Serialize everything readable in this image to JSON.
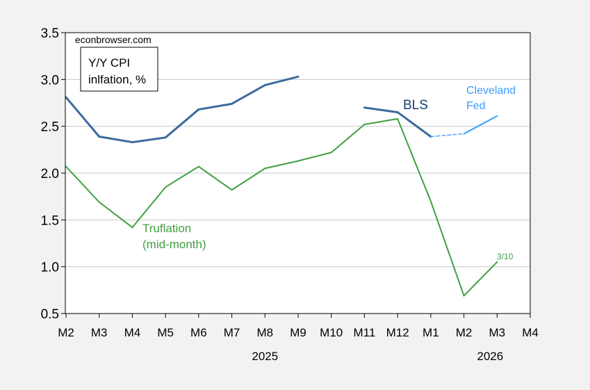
{
  "chart_data": {
    "type": "line",
    "title": "Y/Y CPI inlfation, %",
    "title_lines": [
      "Y/Y CPI",
      "inlfation, %"
    ],
    "watermark": "econbrowser.com",
    "categories": [
      "M2",
      "M3",
      "M4",
      "M5",
      "M6",
      "M7",
      "M8",
      "M9",
      "M10",
      "M11",
      "M12",
      "M1",
      "M2",
      "M3",
      "M4"
    ],
    "year_labels": [
      {
        "label": "2025",
        "at": 6
      },
      {
        "label": "2026",
        "at": 13
      }
    ],
    "ylim": [
      0.5,
      3.5
    ],
    "yticks": [
      "0.5",
      "1.0",
      "1.5",
      "2.0",
      "2.5",
      "3.0",
      "3.5"
    ],
    "grid": true,
    "series": [
      {
        "name": "BLS",
        "label_lines": [
          "BLS"
        ],
        "color": "#3a6a9e",
        "values": [
          2.81,
          2.39,
          2.33,
          2.38,
          2.68,
          2.74,
          2.94,
          3.03,
          null,
          2.7,
          2.65,
          2.39,
          null,
          null,
          null
        ]
      },
      {
        "name": "Cleveland Fed",
        "label_lines": [
          "Cleveland",
          "Fed"
        ],
        "color": "#3d9bff",
        "values": [
          null,
          null,
          null,
          null,
          null,
          null,
          null,
          null,
          null,
          null,
          null,
          2.39,
          2.42,
          2.61,
          null
        ],
        "dashed_segments": [
          11
        ]
      },
      {
        "name": "Truflation (mid-month)",
        "label_lines": [
          "Truflation",
          "(mid-month)"
        ],
        "color": "#3f9f3f",
        "values": [
          2.07,
          1.69,
          1.42,
          1.85,
          2.07,
          1.82,
          2.05,
          2.13,
          2.22,
          2.52,
          2.58,
          1.7,
          0.69,
          1.05,
          null
        ]
      }
    ],
    "annotations": [
      {
        "text": "3/10",
        "series": "Truflation (mid-month)"
      }
    ]
  }
}
